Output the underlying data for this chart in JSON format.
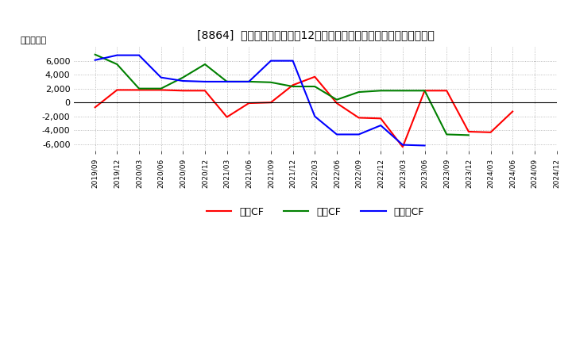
{
  "title": "[8864]  キャッシュフローの12か月移動合計の対前年同期増減額の推移",
  "ylabel": "（百万円）",
  "x_labels": [
    "2019/09",
    "2019/12",
    "2020/03",
    "2020/06",
    "2020/09",
    "2020/12",
    "2021/03",
    "2021/06",
    "2021/09",
    "2021/12",
    "2022/03",
    "2022/06",
    "2022/09",
    "2022/12",
    "2023/03",
    "2023/06",
    "2023/09",
    "2023/12",
    "2024/03",
    "2024/06",
    "2024/09",
    "2024/12"
  ],
  "operating_cf": [
    -700,
    1800,
    1800,
    1800,
    1700,
    1700,
    -2100,
    -100,
    0,
    2500,
    3700,
    -100,
    -2200,
    -2300,
    -6400,
    1700,
    1700,
    -4200,
    -4300,
    -1300,
    null,
    null
  ],
  "investing_cf": [
    6900,
    5500,
    2000,
    2000,
    3600,
    5500,
    3000,
    3000,
    2900,
    2300,
    2300,
    400,
    1500,
    1700,
    1700,
    1700,
    -4600,
    -4700,
    null,
    null,
    null,
    null
  ],
  "free_cf": [
    6100,
    6800,
    6800,
    3600,
    3100,
    3000,
    3000,
    3000,
    6000,
    6000,
    -2000,
    -4600,
    -4600,
    -3300,
    -6100,
    -6200,
    null,
    null,
    null,
    null,
    null,
    null
  ],
  "legend_labels": [
    "営業CF",
    "投資CF",
    "フリーCF"
  ],
  "colors": {
    "operating": "#ff0000",
    "investing": "#008000",
    "free": "#0000ff"
  },
  "ylim": [
    -7000,
    8000
  ],
  "yticks": [
    -6000,
    -4000,
    -2000,
    0,
    2000,
    4000,
    6000
  ],
  "background_color": "#ffffff",
  "grid_color": "#aaaaaa",
  "title_fontsize": 10
}
